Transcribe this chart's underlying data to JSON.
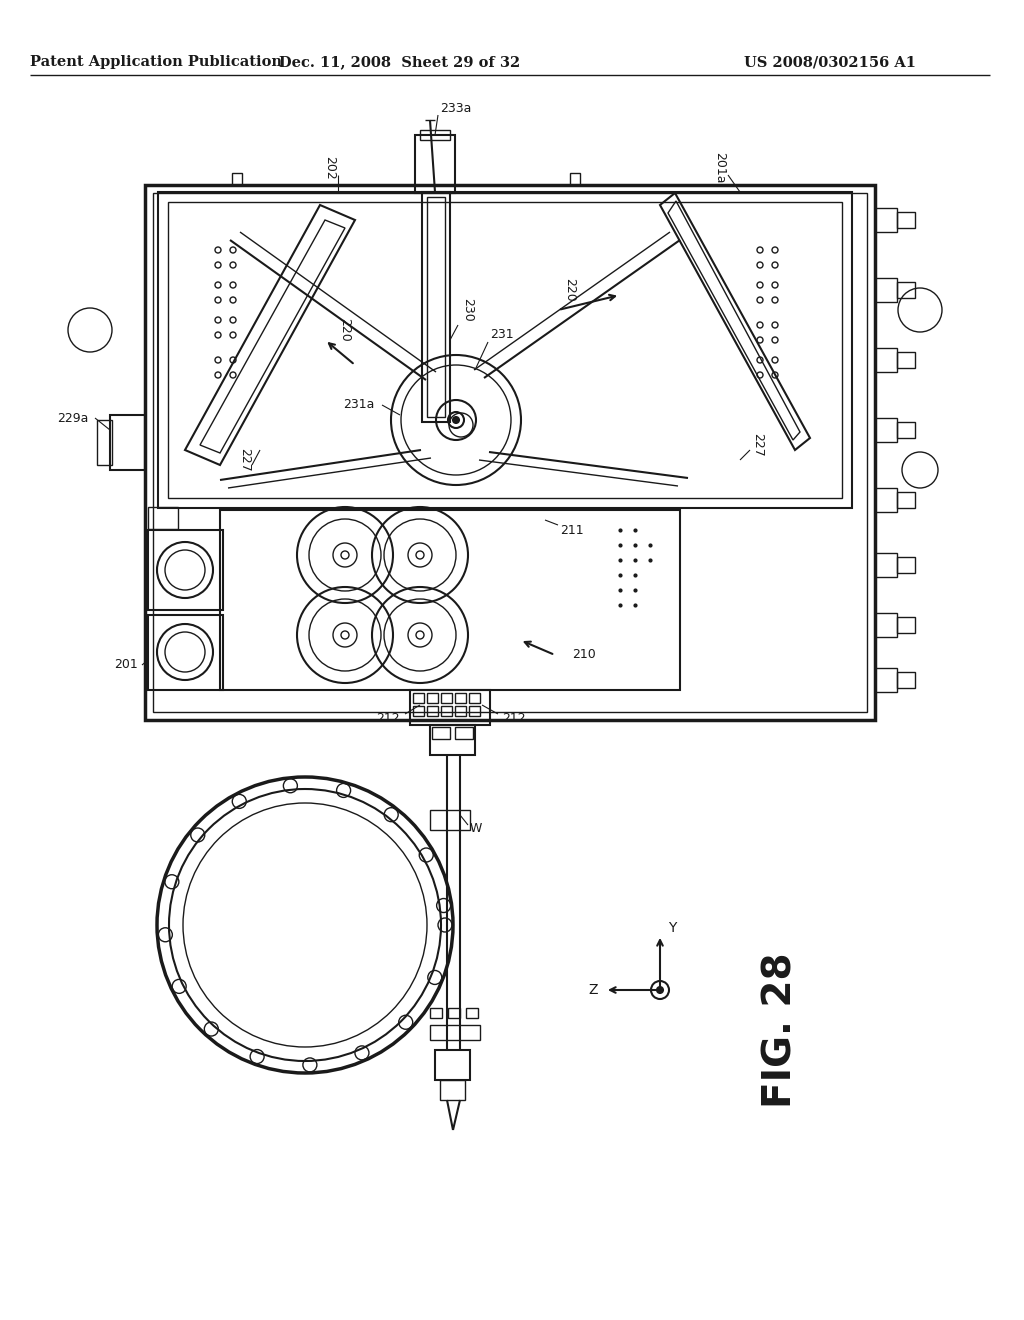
{
  "title_left": "Patent Application Publication",
  "title_mid": "Dec. 11, 2008  Sheet 29 of 32",
  "title_right": "US 2008/0302156 A1",
  "fig_label": "FIG. 28",
  "background_color": "#ffffff",
  "line_color": "#1a1a1a",
  "annotation_fontsize": 9,
  "fig_label_fontsize": 28,
  "header_fontsize": 10.5
}
